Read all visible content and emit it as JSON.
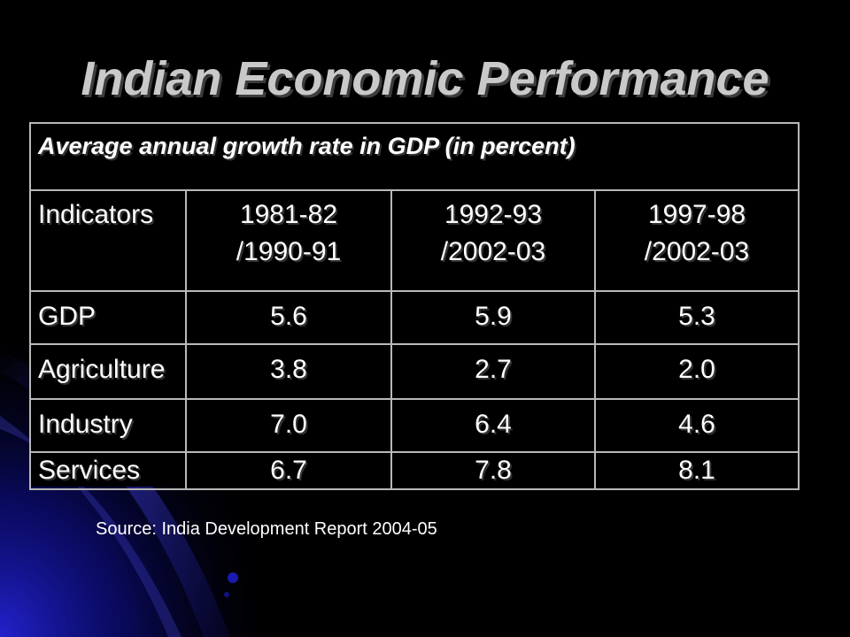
{
  "slide": {
    "title": "Indian Economic Performance",
    "source": "Source: India Development Report 2004-05"
  },
  "table": {
    "caption": "Average annual growth rate in GDP (in percent)",
    "headers": [
      {
        "line1": "Indicators",
        "line2": ""
      },
      {
        "line1": "1981-82",
        "line2": "/1990-91"
      },
      {
        "line1": "1992-93",
        "line2": "/2002-03"
      },
      {
        "line1": "1997-98",
        "line2": "/2002-03"
      }
    ],
    "rows": [
      {
        "label": "GDP",
        "values": [
          "5.6",
          "5.9",
          "5.3"
        ]
      },
      {
        "label": "Agriculture",
        "values": [
          "3.8",
          "2.7",
          "2.0"
        ]
      },
      {
        "label": "Industry",
        "values": [
          "7.0",
          "6.4",
          "4.6"
        ]
      },
      {
        "label": "Services",
        "values": [
          "6.7",
          "7.8",
          "8.1"
        ]
      }
    ]
  },
  "colors": {
    "background": "#000000",
    "title": "#c9c9c9",
    "accent_blue": "#1c1cc8",
    "table_border": "#b8b8b8",
    "text": "#ffffff"
  }
}
